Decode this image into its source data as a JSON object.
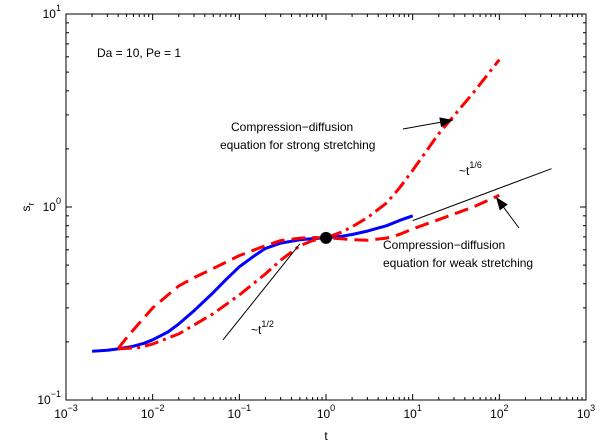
{
  "chart_data": {
    "type": "line",
    "xlabel": "t",
    "ylabel": "s",
    "ylabel_sub": "r",
    "x_scale": "log",
    "y_scale": "log",
    "xlim": [
      0.001,
      1000
    ],
    "ylim": [
      0.1,
      10
    ],
    "grid": false,
    "x_ticks": [
      {
        "value": 0.001,
        "base": "10",
        "exp": "−3"
      },
      {
        "value": 0.01,
        "base": "10",
        "exp": "−2"
      },
      {
        "value": 0.1,
        "base": "10",
        "exp": "−1"
      },
      {
        "value": 1,
        "base": "10",
        "exp": "0"
      },
      {
        "value": 10,
        "base": "10",
        "exp": "1"
      },
      {
        "value": 100,
        "base": "10",
        "exp": "2"
      },
      {
        "value": 1000,
        "base": "10",
        "exp": "3"
      }
    ],
    "y_ticks": [
      {
        "value": 0.1,
        "base": "10",
        "exp": "−1"
      },
      {
        "value": 1,
        "base": "10",
        "exp": "0"
      },
      {
        "value": 10,
        "base": "10",
        "exp": "1"
      }
    ],
    "series": [
      {
        "color": "#0000ff",
        "style": "solid",
        "points": [
          [
            0.002,
            0.179
          ],
          [
            0.003,
            0.181
          ],
          [
            0.004,
            0.184
          ],
          [
            0.006,
            0.19
          ],
          [
            0.008,
            0.197
          ],
          [
            0.01,
            0.205
          ],
          [
            0.015,
            0.225
          ],
          [
            0.02,
            0.248
          ],
          [
            0.03,
            0.29
          ],
          [
            0.05,
            0.36
          ],
          [
            0.07,
            0.42
          ],
          [
            0.1,
            0.49
          ],
          [
            0.15,
            0.56
          ],
          [
            0.2,
            0.61
          ],
          [
            0.3,
            0.65
          ],
          [
            0.5,
            0.676
          ],
          [
            0.7,
            0.686
          ],
          [
            1.0,
            0.692
          ],
          [
            1.5,
            0.705
          ],
          [
            2.0,
            0.72
          ],
          [
            3.0,
            0.75
          ],
          [
            5.0,
            0.8
          ],
          [
            7.0,
            0.85
          ],
          [
            10,
            0.9
          ]
        ]
      },
      {
        "color": "#ff0000",
        "style": "dash",
        "points": [
          [
            0.004,
            0.185
          ],
          [
            0.005,
            0.21
          ],
          [
            0.007,
            0.25
          ],
          [
            0.01,
            0.3
          ],
          [
            0.015,
            0.35
          ],
          [
            0.02,
            0.39
          ],
          [
            0.03,
            0.43
          ],
          [
            0.05,
            0.48
          ],
          [
            0.1,
            0.56
          ],
          [
            0.2,
            0.63
          ],
          [
            0.3,
            0.67
          ],
          [
            0.5,
            0.69
          ],
          [
            0.7,
            0.695
          ],
          [
            1.0,
            0.692
          ],
          [
            1.5,
            0.685
          ],
          [
            2.0,
            0.677
          ],
          [
            3.0,
            0.672
          ],
          [
            5.0,
            0.69
          ],
          [
            7.0,
            0.72
          ],
          [
            10,
            0.77
          ],
          [
            20,
            0.86
          ],
          [
            50,
            1.0
          ],
          [
            100,
            1.15
          ]
        ]
      },
      {
        "color": "#ff0000",
        "style": "dashdot",
        "points": [
          [
            0.004,
            0.184
          ],
          [
            0.007,
            0.187
          ],
          [
            0.01,
            0.195
          ],
          [
            0.02,
            0.22
          ],
          [
            0.05,
            0.28
          ],
          [
            0.1,
            0.35
          ],
          [
            0.2,
            0.45
          ],
          [
            0.3,
            0.53
          ],
          [
            0.5,
            0.63
          ],
          [
            0.7,
            0.67
          ],
          [
            1.0,
            0.692
          ],
          [
            1.5,
            0.74
          ],
          [
            2.0,
            0.79
          ],
          [
            3.0,
            0.88
          ],
          [
            5.0,
            1.05
          ],
          [
            7.0,
            1.25
          ],
          [
            10,
            1.55
          ],
          [
            20,
            2.4
          ],
          [
            50,
            3.9
          ],
          [
            100,
            5.8
          ]
        ]
      },
      {
        "color": "#000000",
        "style": "thin",
        "points": [
          [
            0.065,
            0.205
          ],
          [
            0.5,
            0.645
          ]
        ]
      },
      {
        "color": "#000000",
        "style": "thin",
        "points": [
          [
            10,
            0.85
          ],
          [
            400,
            1.58
          ]
        ]
      }
    ],
    "marker": {
      "x": 1.0,
      "y": 0.692
    },
    "annotations": {
      "params": "Da = 10, Pe = 1",
      "strong_line1": "Compression−diffusion",
      "strong_line2": "equation for strong stretching",
      "weak_line1": "Compression−diffusion",
      "weak_line2": "equation for weak stretching",
      "slope_half_base": "~t",
      "slope_half_exp": "1/2",
      "slope_sixth_base": "~t",
      "slope_sixth_exp": "1/6"
    }
  }
}
